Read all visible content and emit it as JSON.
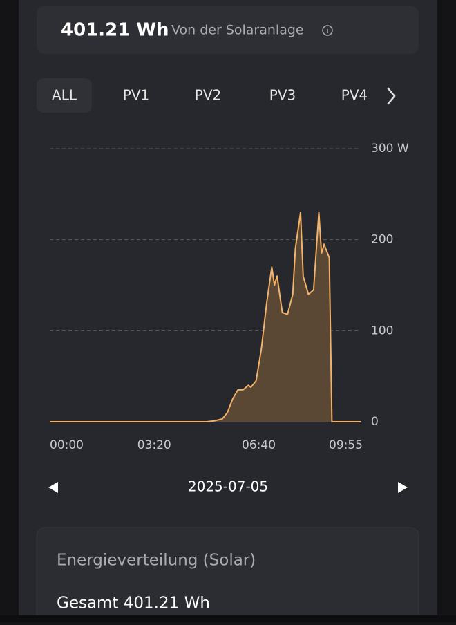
{
  "header": {
    "value": "401.21 Wh",
    "label": "Von der Solaranlage"
  },
  "tabs": [
    "ALL",
    "PV1",
    "PV2",
    "PV3",
    "PV4"
  ],
  "chart_data": {
    "type": "area",
    "x": [
      "00:00",
      "05:00",
      "05:15",
      "05:30",
      "05:40",
      "05:50",
      "06:00",
      "06:10",
      "06:20",
      "06:25",
      "06:35",
      "06:45",
      "06:55",
      "07:05",
      "07:10",
      "07:15",
      "07:25",
      "07:35",
      "07:45",
      "07:50",
      "08:00",
      "08:05",
      "08:15",
      "08:25",
      "08:35",
      "08:40",
      "08:45",
      "08:55",
      "09:00",
      "09:55"
    ],
    "values": [
      0,
      0,
      1,
      3,
      10,
      25,
      35,
      35,
      40,
      38,
      45,
      80,
      130,
      170,
      150,
      160,
      120,
      118,
      140,
      190,
      230,
      160,
      140,
      145,
      230,
      185,
      195,
      180,
      0,
      0
    ],
    "xlim": [
      "00:00",
      "09:55"
    ],
    "xticks": [
      "00:00",
      "03:20",
      "06:40",
      "09:55"
    ],
    "ylim": [
      0,
      300
    ],
    "yticks": [
      0,
      100,
      200,
      {
        "value": 300,
        "label": "300 W"
      }
    ],
    "color": "#f2b26a",
    "fill": "#5a4834",
    "grid": true
  },
  "date": "2025-07-05",
  "card": {
    "title": "Energieverteilung (Solar)",
    "total": "Gesamt 401.21 Wh"
  }
}
